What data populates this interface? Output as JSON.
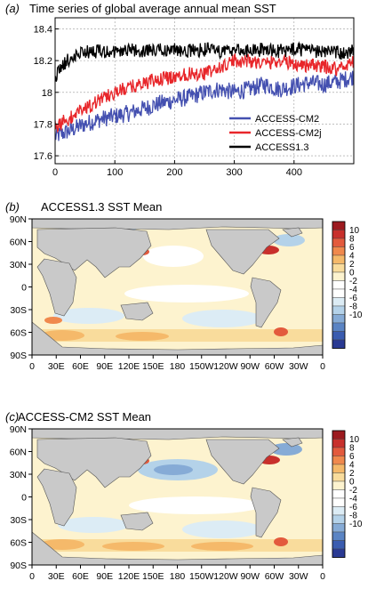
{
  "panels": {
    "a": {
      "letter": "(a)",
      "title": "Time series of global average annual mean SST"
    },
    "b": {
      "letter": "(b)",
      "title": "ACCESS1.3 SST Mean"
    },
    "c": {
      "letter": "(c)",
      "title": "ACCESS-CM2 SST Mean"
    }
  },
  "chart_data": [
    {
      "type": "line",
      "title": "Time series of global average annual mean SST",
      "xlabel": "",
      "ylabel": "",
      "xlim": [
        0,
        500
      ],
      "ylim": [
        17.55,
        18.47
      ],
      "x_ticks": [
        0,
        100,
        200,
        300,
        400
      ],
      "y_ticks": [
        17.6,
        17.8,
        18.0,
        18.2,
        18.4
      ],
      "grid": true,
      "legend_position": "bottom-right",
      "series": [
        {
          "name": "ACCESS-CM2",
          "color": "#4450b0",
          "x": [
            0,
            25,
            50,
            75,
            100,
            125,
            150,
            175,
            200,
            225,
            250,
            275,
            300,
            325,
            350,
            375,
            400,
            425,
            450,
            475,
            500
          ],
          "y": [
            17.72,
            17.76,
            17.8,
            17.83,
            17.85,
            17.87,
            17.9,
            17.93,
            17.95,
            17.97,
            18.0,
            18.02,
            18.0,
            18.02,
            18.05,
            18.02,
            18.04,
            18.06,
            18.05,
            18.07,
            18.1
          ]
        },
        {
          "name": "ACCESS-CM2j",
          "color": "#e8262a",
          "x": [
            0,
            25,
            50,
            75,
            100,
            125,
            150,
            175,
            200,
            225,
            250,
            275,
            300,
            325,
            350,
            375,
            400,
            425,
            450,
            475,
            500
          ],
          "y": [
            17.78,
            17.84,
            17.9,
            17.95,
            18.0,
            18.03,
            18.06,
            18.08,
            18.1,
            18.12,
            18.12,
            18.15,
            18.2,
            18.2,
            18.18,
            18.2,
            18.18,
            18.17,
            18.16,
            18.15,
            18.2
          ]
        },
        {
          "name": "ACCESS1.3",
          "color": "#000000",
          "x": [
            0,
            25,
            50,
            75,
            100,
            125,
            150,
            175,
            200,
            225,
            250,
            275,
            300,
            325,
            350,
            375,
            400,
            425,
            450,
            475,
            500
          ],
          "y": [
            18.1,
            18.22,
            18.25,
            18.26,
            18.26,
            18.27,
            18.26,
            18.27,
            18.27,
            18.26,
            18.27,
            18.26,
            18.27,
            18.26,
            18.27,
            18.26,
            18.27,
            18.26,
            18.26,
            18.25,
            18.26
          ]
        }
      ]
    },
    {
      "type": "heatmap",
      "title": "ACCESS1.3 SST Mean",
      "x_ticks": [
        "0",
        "30E",
        "60E",
        "90E",
        "120E",
        "150E",
        "180",
        "150W",
        "120W",
        "90W",
        "60W",
        "30W",
        "0"
      ],
      "y_ticks": [
        "90N",
        "60N",
        "30N",
        "0",
        "30S",
        "60S",
        "90S"
      ],
      "colorbar_ticks": [
        "10",
        "8",
        "6",
        "4",
        "2",
        "0",
        "-2",
        "-4",
        "-6",
        "-8",
        "-10"
      ],
      "colorbar_range": [
        -11,
        11
      ]
    },
    {
      "type": "heatmap",
      "title": "ACCESS-CM2 SST Mean",
      "x_ticks": [
        "0",
        "30E",
        "60E",
        "90E",
        "120E",
        "150E",
        "180",
        "150W",
        "120W",
        "90W",
        "60W",
        "30W",
        "0"
      ],
      "y_ticks": [
        "90N",
        "60N",
        "30N",
        "0",
        "30S",
        "60S",
        "90S"
      ],
      "colorbar_ticks": [
        "10",
        "8",
        "6",
        "4",
        "2",
        "0",
        "-2",
        "-4",
        "-6",
        "-8",
        "-10"
      ],
      "colorbar_range": [
        -11,
        11
      ]
    }
  ],
  "colorbar_colors": [
    "#2a3a93",
    "#3a5cb0",
    "#5a84c4",
    "#86abd6",
    "#b4d2e9",
    "#dcecf5",
    "#ffffff",
    "#ffffff",
    "#fdf3cf",
    "#f9dc9c",
    "#f5b96a",
    "#f0894d",
    "#e35a3d",
    "#c8302c",
    "#9c1a1f"
  ]
}
